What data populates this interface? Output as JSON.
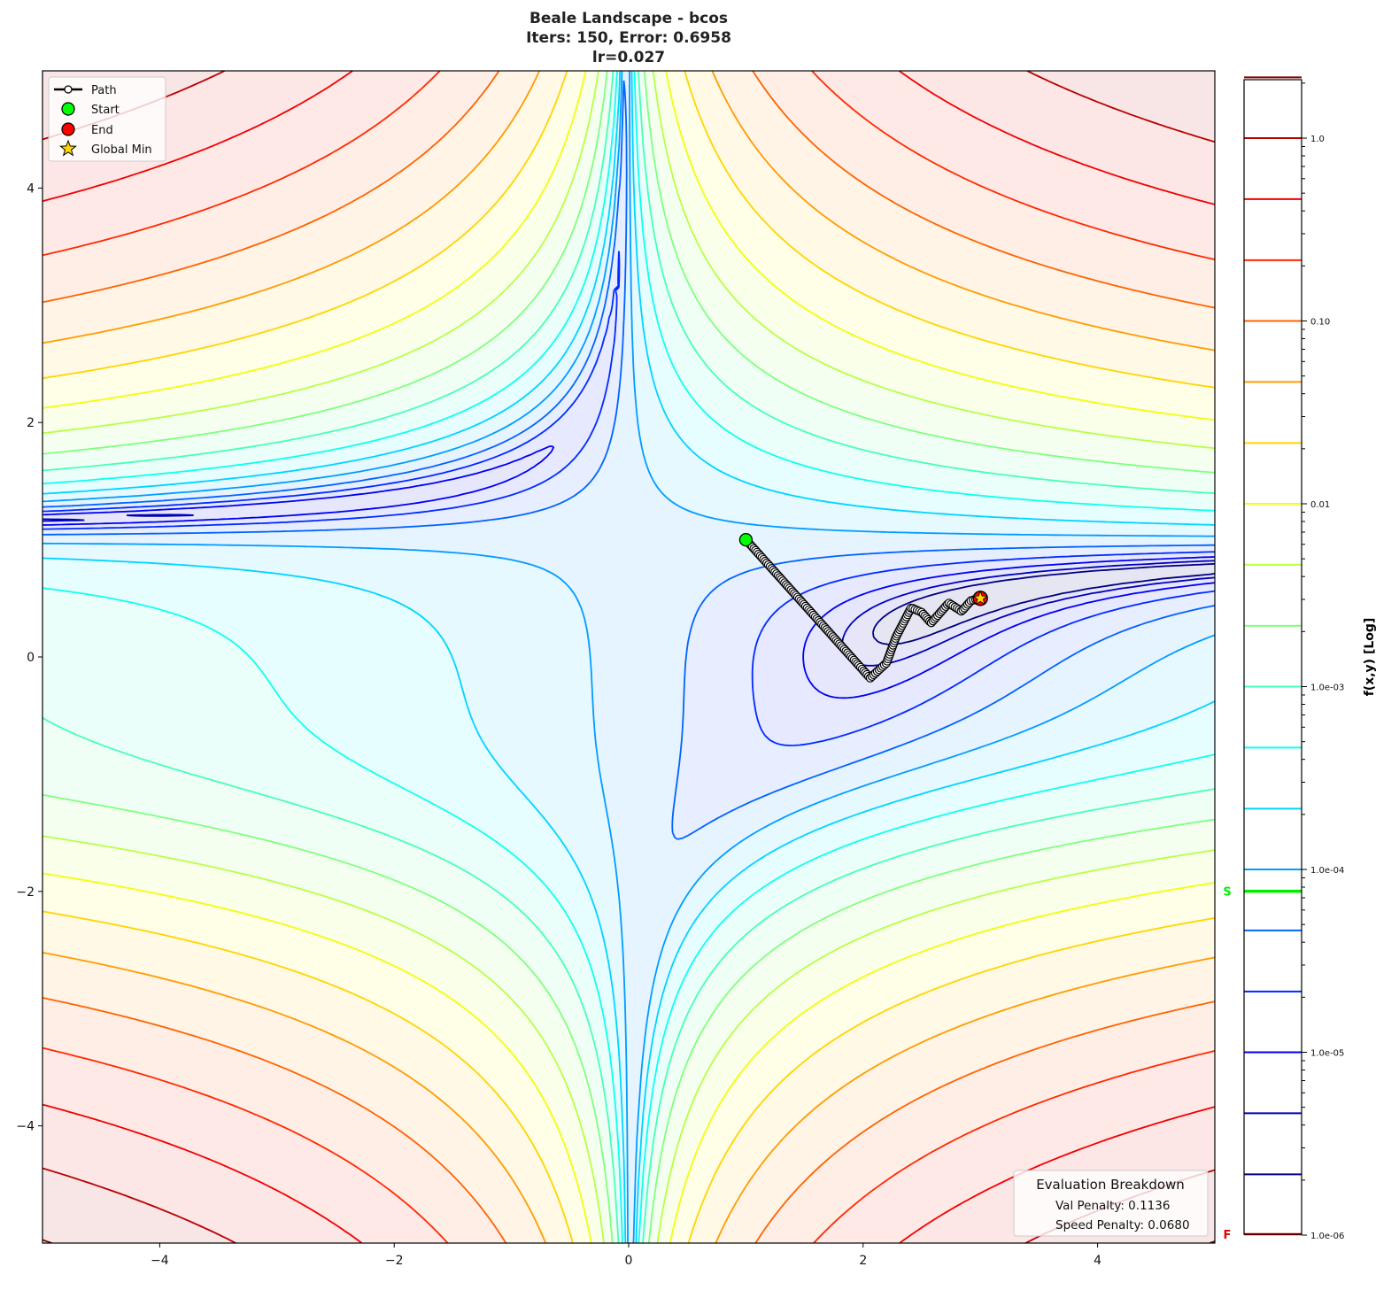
{
  "chart_data": {
    "type": "contour",
    "title_lines": [
      "Beale Landscape - bcos",
      "Iters: 150, Error: 0.6958",
      "lr=0.027"
    ],
    "xlim": [
      -5,
      5
    ],
    "ylim": [
      -5,
      5
    ],
    "x_ticks": [
      -4,
      -2,
      0,
      2,
      4
    ],
    "x_tick_labels": [
      "−4",
      "−2",
      "0",
      "2",
      "4"
    ],
    "y_ticks": [
      4,
      2,
      0,
      -2,
      -4
    ],
    "y_tick_labels": [
      "4",
      "2",
      "0",
      "−2",
      "−4"
    ],
    "grid": false,
    "colormap": "jet",
    "contour_levels": [
      2.15e-06,
      4.64e-06,
      1e-05,
      2.15e-05,
      4.64e-05,
      0.0001,
      0.000215,
      0.000464,
      0.001,
      0.00215,
      0.00464,
      0.01,
      0.0215,
      0.0464,
      0.1,
      0.215,
      0.464,
      1.0,
      2.15
    ],
    "colorbar": {
      "label": "f(x,y) [Log]",
      "scale": "log",
      "range": [
        1e-06,
        2.15
      ],
      "tick_values": [
        1,
        0.1,
        0.01,
        0.001,
        0.0001,
        1e-05,
        1e-06
      ],
      "tick_labels": [
        "1.0",
        "0.10",
        "0.01",
        "1.0e-03",
        "1.0e-04",
        "1.0e-05",
        "1.0e-06"
      ],
      "start_marker": {
        "label": "S",
        "value": 7.6e-05,
        "color": "#00ee00"
      },
      "final_marker": {
        "label": "F",
        "value": 1e-06,
        "color": "#e00000"
      }
    },
    "path": {
      "iterations": 150,
      "waypoints": {
        "x": [
          1.0,
          2.06,
          2.2,
          2.28,
          2.41,
          2.5,
          2.58,
          2.73,
          2.84,
          2.92,
          3.0
        ],
        "y": [
          1.0,
          -0.18,
          -0.05,
          0.17,
          0.42,
          0.38,
          0.29,
          0.46,
          0.39,
          0.48,
          0.5
        ]
      }
    },
    "start": {
      "x": 1.0,
      "y": 1.0,
      "color": "#00ff00"
    },
    "end": {
      "x": 3.0,
      "y": 0.5,
      "color": "#ff0000"
    },
    "global_min": {
      "x": 3.0,
      "y": 0.5,
      "color": "#ffd700"
    },
    "legend": {
      "position": "upper-left",
      "entries": [
        "Path",
        "Start",
        "End",
        "Global Min"
      ]
    },
    "eval_box": {
      "position": "lower-right",
      "title": "Evaluation Breakdown",
      "lines": [
        "Val Penalty: 0.1136",
        "Speed Penalty: 0.0680"
      ]
    }
  }
}
